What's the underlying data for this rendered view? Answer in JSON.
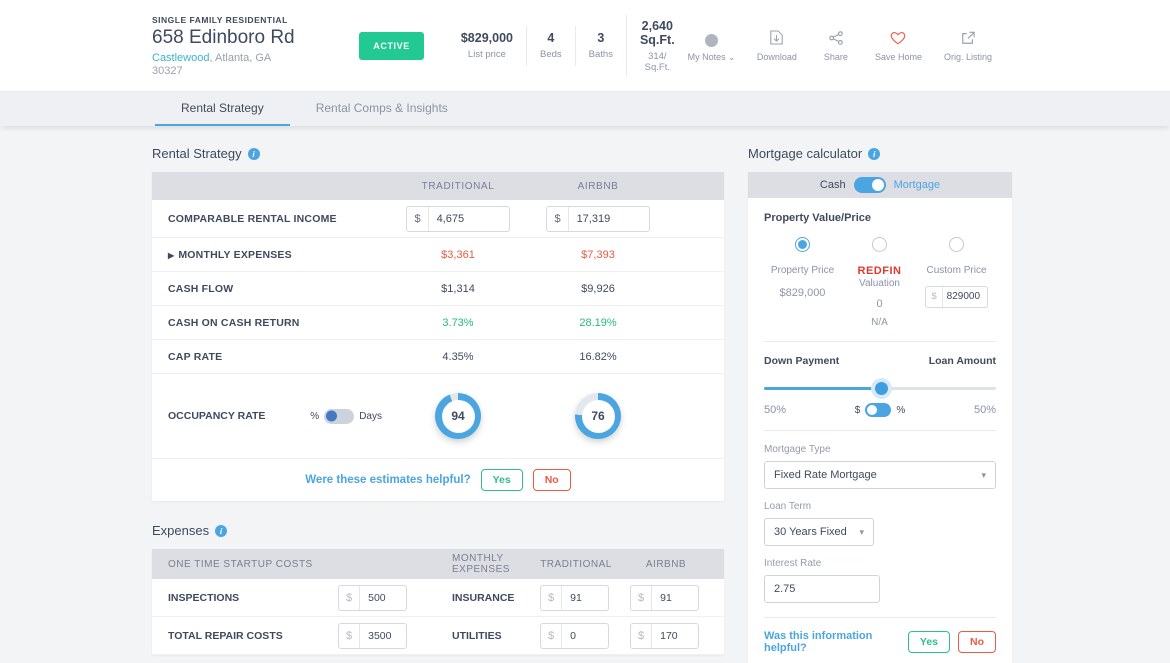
{
  "icons": {
    "chevron_down": "⌄",
    "caret_down": "▾",
    "triangle_right": "▶",
    "info": "i"
  },
  "header": {
    "property_type": "SINGLE FAMILY RESIDENTIAL",
    "address": "658 Edinboro Rd",
    "neighborhood": "Castlewood",
    "location_rest": ", Atlanta, GA",
    "zip": "30327",
    "status_badge": "ACTIVE",
    "stats": {
      "price_value": "$829,000",
      "price_label": "List price",
      "beds_value": "4",
      "beds_label": "Beds",
      "baths_value": "3",
      "baths_label": "Baths",
      "sqft_value": "2,640 Sq.Ft.",
      "sqft_sub": "314/ Sq.Ft."
    },
    "actions": {
      "my_notes": "My Notes",
      "download": "Download",
      "share": "Share",
      "save_home": "Save Home",
      "orig_listing": "Orig. Listing"
    }
  },
  "tabs": {
    "rental_strategy": "Rental Strategy",
    "rental_comps": "Rental Comps & Insights"
  },
  "rental_strategy": {
    "title": "Rental Strategy",
    "columns": {
      "traditional": "TRADITIONAL",
      "airbnb": "AIRBNB"
    },
    "income": {
      "label": "COMPARABLE RENTAL INCOME",
      "currency": "$",
      "traditional": "4,675",
      "airbnb": "17,319"
    },
    "monthly_expenses": {
      "label": "MONTHLY EXPENSES",
      "traditional": "$3,361",
      "airbnb": "$7,393"
    },
    "cash_flow": {
      "label": "CASH FLOW",
      "traditional": "$1,314",
      "airbnb": "$9,926"
    },
    "cash_on_cash": {
      "label": "CASH ON CASH RETURN",
      "traditional": "3.73%",
      "airbnb": "28.19%"
    },
    "cap_rate": {
      "label": "CAP RATE",
      "traditional": "4.35%",
      "airbnb": "16.82%"
    },
    "occupancy": {
      "label": "OCCUPANCY RATE",
      "pct_label": "%",
      "days_label": "Days",
      "traditional": 94,
      "airbnb": 76
    },
    "feedback": {
      "question": "Were these estimates helpful?",
      "yes": "Yes",
      "no": "No"
    }
  },
  "expenses": {
    "title": "Expenses",
    "headers": {
      "startup": "ONE TIME STARTUP COSTS",
      "monthly": "MONTHLY EXPENSES",
      "traditional": "TRADITIONAL",
      "airbnb": "AIRBNB"
    },
    "currency": "$",
    "rows": [
      {
        "startup_label": "INSPECTIONS",
        "startup_value": "500",
        "monthly_label": "INSURANCE",
        "traditional_value": "91",
        "airbnb_value": "91"
      },
      {
        "startup_label": "TOTAL REPAIR COSTS",
        "startup_value": "3500",
        "monthly_label": "UTILITIES",
        "traditional_value": "0",
        "airbnb_value": "170"
      }
    ]
  },
  "mortgage": {
    "title": "Mortgage calculator",
    "mode_cash": "Cash",
    "mode_mortgage": "Mortgage",
    "property_value_label": "Property Value/Price",
    "option_property": {
      "label": "Property Price",
      "value": "$829,000"
    },
    "option_redfin": {
      "brand": "REDFIN",
      "label": "Valuation",
      "value": "0",
      "note": "N/A"
    },
    "option_custom": {
      "label": "Custom Price",
      "currency": "$",
      "value": "829000"
    },
    "down_payment_label": "Down Payment",
    "loan_amount_label": "Loan Amount",
    "down_payment_pct": "50%",
    "loan_amount_pct": "50%",
    "currency": "$",
    "percent": "%",
    "slider_value": 51,
    "mortgage_type_label": "Mortgage Type",
    "mortgage_type_value": "Fixed Rate Mortgage",
    "loan_term_label": "Loan Term",
    "loan_term_value": "30 Years Fixed",
    "interest_rate_label": "Interest Rate",
    "interest_rate_value": "2.75",
    "feedback": {
      "question": "Was this information helpful?",
      "yes": "Yes",
      "no": "No"
    }
  }
}
